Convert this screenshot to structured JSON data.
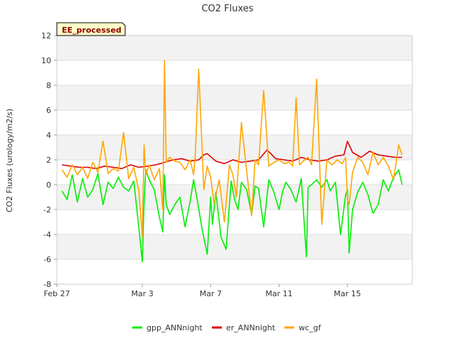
{
  "chart_data": {
    "type": "line",
    "title": "CO2 Fluxes",
    "ylabel": "CO2 Fluxes (urology/m2/s)",
    "xlabel": "",
    "badge": "EE_processed",
    "ylim": [
      -8,
      12
    ],
    "yticks": [
      -8,
      -6,
      -4,
      -2,
      0,
      2,
      4,
      6,
      8,
      10,
      12
    ],
    "xlim_days": [
      0,
      20.8
    ],
    "xticks": [
      {
        "day": 0,
        "label": "Feb 27"
      },
      {
        "day": 5,
        "label": "Mar 3"
      },
      {
        "day": 9,
        "label": "Mar 7"
      },
      {
        "day": 13,
        "label": "Mar 11"
      },
      {
        "day": 17,
        "label": "Mar 15"
      }
    ],
    "grid": true,
    "legend_position": "bottom",
    "series": [
      {
        "name": "gpp_ANNnight",
        "color": "#00ee00",
        "x": [
          0.3,
          0.6,
          0.9,
          1.2,
          1.5,
          1.8,
          2.1,
          2.4,
          2.7,
          3.0,
          3.3,
          3.6,
          3.9,
          4.2,
          4.5,
          4.8,
          5.0,
          5.1,
          5.2,
          5.4,
          5.7,
          6.0,
          6.2,
          6.3,
          6.4,
          6.6,
          6.9,
          7.2,
          7.5,
          7.8,
          8.0,
          8.2,
          8.5,
          8.8,
          9.0,
          9.1,
          9.3,
          9.6,
          9.9,
          10.2,
          10.4,
          10.6,
          10.8,
          11.1,
          11.4,
          11.6,
          11.8,
          12.1,
          12.4,
          12.7,
          13.0,
          13.2,
          13.4,
          13.7,
          14.0,
          14.3,
          14.6,
          14.7,
          14.9,
          15.2,
          15.5,
          15.8,
          16.0,
          16.3,
          16.6,
          16.9,
          17.0,
          17.1,
          17.3,
          17.6,
          17.9,
          18.2,
          18.5,
          18.8,
          19.1,
          19.4,
          19.7,
          20.0,
          20.2
        ],
        "values": [
          -0.5,
          -1.2,
          0.8,
          -1.4,
          0.5,
          -1.0,
          -0.4,
          0.9,
          -1.6,
          0.2,
          -0.3,
          0.6,
          -0.2,
          -0.5,
          0.3,
          -3.5,
          -6.2,
          -1.5,
          1.2,
          0.4,
          -0.4,
          -2.6,
          -3.8,
          0.8,
          -1.6,
          -2.4,
          -1.6,
          -1.0,
          -3.4,
          -1.3,
          0.4,
          -1.1,
          -3.6,
          -5.6,
          -1.0,
          -3.2,
          -0.6,
          -4.2,
          -5.2,
          0.3,
          -1.2,
          -2.0,
          0.2,
          -0.4,
          -2.4,
          -0.1,
          -0.3,
          -3.4,
          0.4,
          -0.6,
          -2.0,
          -0.6,
          0.2,
          -0.4,
          -1.4,
          0.5,
          -5.8,
          -0.2,
          0.0,
          0.4,
          -0.2,
          0.4,
          -0.5,
          0.2,
          -4.0,
          -0.8,
          -0.4,
          -5.5,
          -2.0,
          -0.6,
          0.2,
          -0.8,
          -2.3,
          -1.6,
          0.4,
          -0.5,
          0.6,
          1.2,
          0.0
        ]
      },
      {
        "name": "er_ANNnight",
        "color": "#dd0000",
        "x": [
          0.3,
          0.8,
          1.3,
          1.8,
          2.3,
          2.8,
          3.3,
          3.8,
          4.3,
          4.8,
          5.3,
          5.8,
          6.3,
          6.8,
          7.3,
          7.8,
          8.3,
          8.6,
          8.8,
          9.3,
          9.8,
          10.3,
          10.8,
          11.3,
          11.8,
          12.3,
          12.8,
          13.3,
          13.8,
          14.3,
          14.8,
          15.3,
          15.8,
          16.3,
          16.8,
          17.0,
          17.3,
          17.8,
          18.3,
          18.8,
          19.3,
          19.8,
          20.2
        ],
        "values": [
          1.6,
          1.5,
          1.4,
          1.4,
          1.3,
          1.5,
          1.4,
          1.3,
          1.6,
          1.4,
          1.5,
          1.6,
          1.8,
          2.0,
          2.1,
          1.9,
          2.0,
          2.4,
          2.5,
          1.9,
          1.7,
          2.0,
          1.8,
          1.9,
          2.0,
          2.8,
          2.1,
          2.0,
          1.9,
          2.2,
          2.0,
          1.9,
          2.0,
          2.3,
          2.4,
          3.5,
          2.6,
          2.2,
          2.7,
          2.4,
          2.3,
          2.2,
          2.2
        ]
      },
      {
        "name": "wc_gf",
        "color": "#ffa500",
        "x": [
          0.3,
          0.6,
          0.9,
          1.2,
          1.5,
          1.8,
          2.1,
          2.4,
          2.7,
          3.0,
          3.3,
          3.6,
          3.9,
          4.2,
          4.5,
          4.8,
          5.0,
          5.1,
          5.2,
          5.4,
          5.7,
          6.0,
          6.2,
          6.3,
          6.4,
          6.6,
          6.9,
          7.2,
          7.5,
          7.8,
          8.0,
          8.1,
          8.3,
          8.6,
          8.8,
          9.0,
          9.2,
          9.5,
          9.8,
          10.1,
          10.3,
          10.5,
          10.8,
          11.1,
          11.4,
          11.6,
          11.8,
          12.1,
          12.4,
          12.7,
          13.0,
          13.3,
          13.6,
          13.8,
          14.0,
          14.2,
          14.5,
          14.7,
          14.9,
          15.2,
          15.5,
          15.8,
          16.1,
          16.4,
          16.7,
          16.9,
          17.0,
          17.1,
          17.3,
          17.6,
          17.9,
          18.2,
          18.5,
          18.8,
          19.1,
          19.4,
          19.7,
          20.0,
          20.2
        ],
        "values": [
          1.2,
          0.6,
          1.6,
          0.8,
          1.4,
          0.5,
          1.8,
          1.0,
          3.5,
          0.9,
          1.3,
          1.1,
          4.2,
          0.5,
          1.4,
          -0.5,
          -4.2,
          3.2,
          0.8,
          1.6,
          0.4,
          1.3,
          -2.0,
          10.0,
          1.8,
          2.2,
          1.9,
          1.8,
          1.2,
          2.0,
          0.8,
          2.4,
          9.3,
          -0.4,
          1.5,
          0.6,
          -1.5,
          0.4,
          -3.0,
          1.6,
          0.8,
          -1.0,
          5.0,
          1.2,
          -2.5,
          2.0,
          1.6,
          7.6,
          1.5,
          1.8,
          2.0,
          1.7,
          1.8,
          1.5,
          7.0,
          1.6,
          2.0,
          2.2,
          1.6,
          8.5,
          -3.2,
          2.0,
          1.6,
          2.0,
          1.7,
          2.2,
          -1.2,
          -1.6,
          1.0,
          2.2,
          1.8,
          0.8,
          2.6,
          1.6,
          2.2,
          1.5,
          0.4,
          3.2,
          2.4
        ]
      }
    ]
  }
}
